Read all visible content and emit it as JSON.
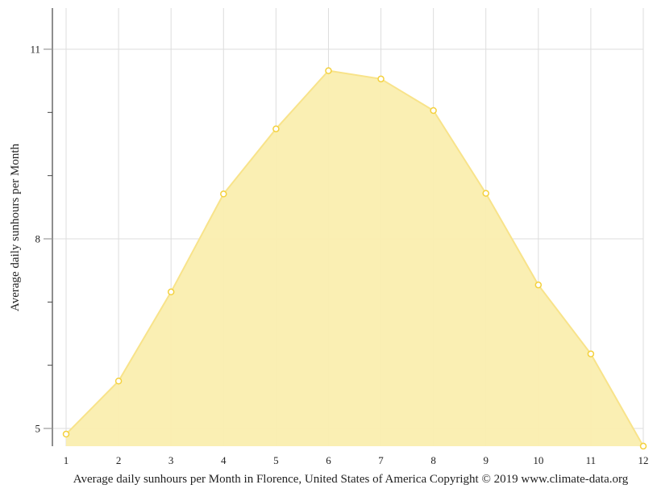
{
  "chart_data": {
    "type": "area",
    "title": "",
    "caption": "Average daily sunhours per Month in Florence, United States of America Copyright © 2019 www.climate-data.org",
    "xlabel": "",
    "ylabel": "Average daily sunhours per Month",
    "categories": [
      "1",
      "2",
      "3",
      "4",
      "5",
      "6",
      "7",
      "8",
      "9",
      "10",
      "11",
      "12"
    ],
    "x": [
      1,
      2,
      3,
      4,
      5,
      6,
      7,
      8,
      9,
      10,
      11,
      12
    ],
    "values": [
      4.91,
      5.75,
      7.16,
      8.71,
      9.74,
      10.66,
      10.53,
      10.03,
      8.72,
      7.27,
      6.18,
      4.72
    ],
    "ylim": [
      4.72,
      11.65
    ],
    "yticks_major": [
      5,
      8,
      11
    ],
    "yticks_minor": [
      6,
      7,
      9,
      10
    ],
    "grid": true,
    "legend": null,
    "colors": {
      "fill": "#faeeaf",
      "line": "#f8e38a",
      "marker_stroke": "#f4d13e",
      "marker_fill": "#ffffff",
      "grid": "#dddddd",
      "axis": "#444444"
    }
  }
}
